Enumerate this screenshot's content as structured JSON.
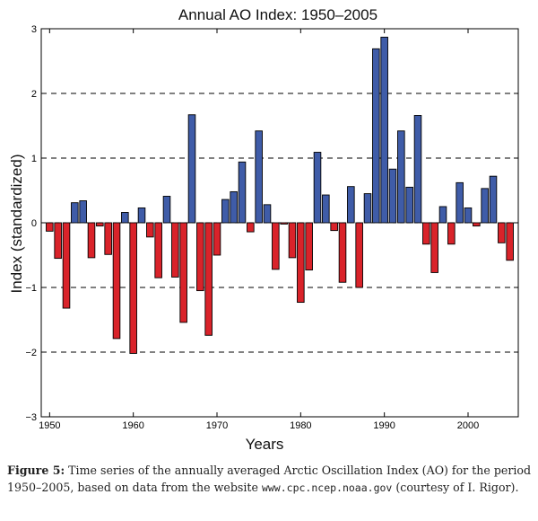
{
  "chart_data": {
    "type": "bar",
    "title": "Annual AO Index: 1950–2005",
    "xlabel": "Years",
    "ylabel": "Index (standardized)",
    "xlim": [
      1949,
      2006
    ],
    "ylim": [
      -3,
      3
    ],
    "yticks": [
      -3,
      -2,
      -1,
      0,
      1,
      2,
      3
    ],
    "xticks": [
      1950,
      1960,
      1970,
      1980,
      1990,
      2000
    ],
    "gridlines": [
      -2,
      -1,
      1,
      2
    ],
    "grid": "dashed horizontal",
    "positive_color": "#3f5ca8",
    "negative_color": "#d9232a",
    "x": [
      1950,
      1951,
      1952,
      1953,
      1954,
      1955,
      1956,
      1957,
      1958,
      1959,
      1960,
      1961,
      1962,
      1963,
      1964,
      1965,
      1966,
      1967,
      1968,
      1969,
      1970,
      1971,
      1972,
      1973,
      1974,
      1975,
      1976,
      1977,
      1978,
      1979,
      1980,
      1981,
      1982,
      1983,
      1984,
      1985,
      1986,
      1987,
      1988,
      1989,
      1990,
      1991,
      1992,
      1993,
      1994,
      1995,
      1996,
      1997,
      1998,
      1999,
      2000,
      2001,
      2002,
      2003,
      2004,
      2005
    ],
    "values": [
      -0.13,
      -0.55,
      -1.32,
      0.31,
      0.34,
      -0.54,
      -0.05,
      -0.49,
      -1.79,
      0.16,
      -2.02,
      0.23,
      -0.22,
      -0.85,
      0.41,
      -0.84,
      -1.54,
      1.67,
      -1.05,
      -1.74,
      -0.5,
      0.36,
      0.48,
      0.94,
      -0.14,
      1.42,
      0.28,
      -0.72,
      -0.02,
      -0.54,
      -1.23,
      -0.73,
      1.09,
      0.43,
      -0.12,
      -0.92,
      0.56,
      -1.0,
      0.45,
      2.69,
      2.87,
      0.83,
      1.42,
      0.55,
      1.66,
      -0.33,
      -0.77,
      0.25,
      -0.33,
      0.62,
      0.23,
      -0.05,
      0.53,
      0.72,
      -0.31,
      -0.58
    ]
  },
  "caption": {
    "label": "Figure 5:",
    "text1": "Time series of the annually averaged Arctic Oscillation Index (AO) for the period 1950–2005, based on data from the website",
    "url": "www.cpc.ncep.noaa.gov",
    "text2": "(courtesy of I. Rigor)."
  }
}
